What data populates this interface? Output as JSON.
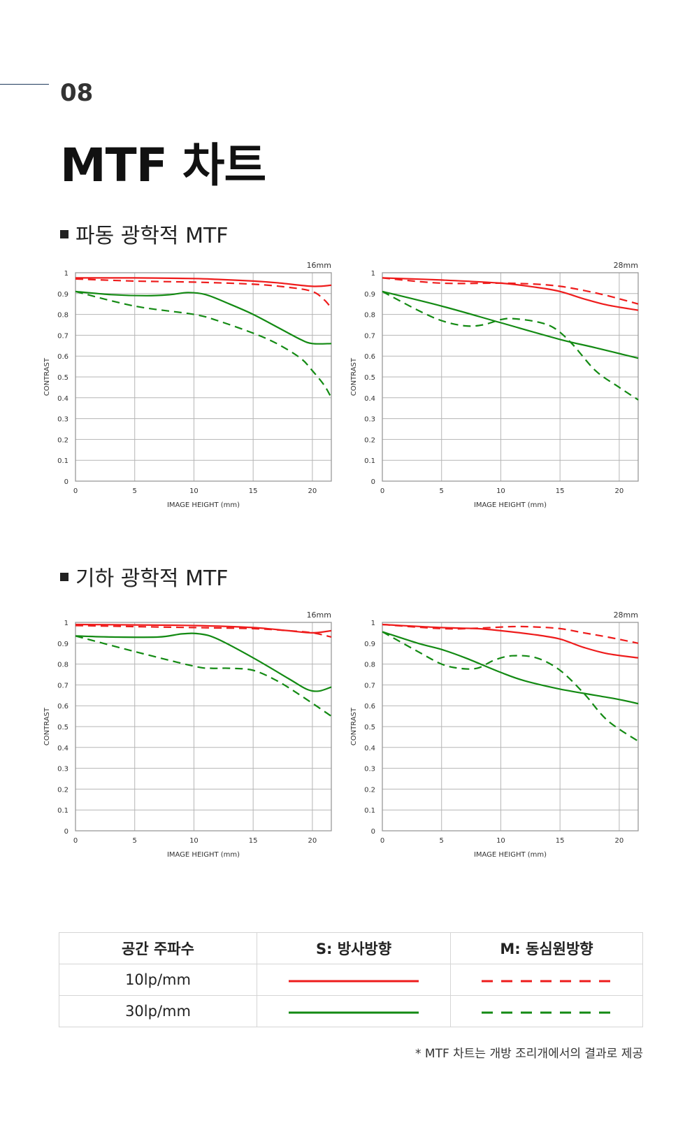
{
  "section": {
    "number": "08",
    "title": "MTF 차트"
  },
  "headings": [
    "파동 광학적 MTF",
    "기하 광학적 MTF"
  ],
  "charts_common": {
    "ylabel": "CONTRAST",
    "xlabel": "IMAGE HEIGHT (mm)",
    "yticks": [
      "0",
      "0.1",
      "0.2",
      "0.3",
      "0.4",
      "0.5",
      "0.6",
      "0.7",
      "0.8",
      "0.9",
      "1"
    ],
    "xticks": [
      "0",
      "5",
      "10",
      "15",
      "20"
    ]
  },
  "colors": {
    "red": "#ee1c1c",
    "green": "#138a13",
    "grid": "#b5b5b5"
  },
  "chart_data": [
    {
      "type": "line",
      "group": "파동 광학적 MTF",
      "title": "16mm",
      "xlabel": "IMAGE HEIGHT (mm)",
      "ylabel": "CONTRAST",
      "xlim": [
        0,
        21.6
      ],
      "ylim": [
        0,
        1
      ],
      "series": [
        {
          "color": "#ee1c1c",
          "dash": false,
          "x": [
            0,
            5,
            10,
            12,
            15,
            17,
            20,
            21.6
          ],
          "y": [
            0.975,
            0.975,
            0.972,
            0.968,
            0.96,
            0.952,
            0.935,
            0.94
          ]
        },
        {
          "color": "#ee1c1c",
          "dash": true,
          "x": [
            0,
            5,
            10,
            15,
            18,
            20,
            21,
            21.6
          ],
          "y": [
            0.97,
            0.96,
            0.955,
            0.945,
            0.93,
            0.91,
            0.87,
            0.83
          ]
        },
        {
          "color": "#138a13",
          "dash": true,
          "x": [
            0,
            5,
            10,
            12,
            15,
            17,
            19,
            20,
            21,
            21.6
          ],
          "y": [
            0.91,
            0.84,
            0.8,
            0.77,
            0.71,
            0.66,
            0.59,
            0.53,
            0.46,
            0.4
          ]
        },
        {
          "color": "#138a13",
          "dash": false,
          "x": [
            0,
            3,
            6,
            8,
            9.5,
            11,
            13,
            15,
            17,
            19,
            20,
            21.6
          ],
          "y": [
            0.91,
            0.895,
            0.89,
            0.895,
            0.905,
            0.895,
            0.85,
            0.8,
            0.74,
            0.68,
            0.66,
            0.66
          ]
        }
      ]
    },
    {
      "type": "line",
      "group": "파동 광학적 MTF",
      "title": "28mm",
      "xlabel": "IMAGE HEIGHT (mm)",
      "ylabel": "CONTRAST",
      "xlim": [
        0,
        21.6
      ],
      "ylim": [
        0,
        1
      ],
      "series": [
        {
          "color": "#ee1c1c",
          "dash": false,
          "x": [
            0,
            5,
            10,
            13,
            15,
            17,
            19,
            21.6
          ],
          "y": [
            0.975,
            0.965,
            0.95,
            0.93,
            0.91,
            0.875,
            0.845,
            0.82
          ]
        },
        {
          "color": "#ee1c1c",
          "dash": true,
          "x": [
            0,
            5,
            10,
            13,
            15,
            17,
            19,
            21.6
          ],
          "y": [
            0.975,
            0.95,
            0.95,
            0.945,
            0.935,
            0.915,
            0.89,
            0.85
          ]
        },
        {
          "color": "#138a13",
          "dash": false,
          "x": [
            0,
            5,
            10,
            15,
            18,
            21.6
          ],
          "y": [
            0.91,
            0.84,
            0.76,
            0.68,
            0.64,
            0.59
          ]
        },
        {
          "color": "#138a13",
          "dash": true,
          "x": [
            0,
            3,
            5,
            7,
            8.5,
            10,
            11,
            13,
            14.5,
            16,
            18,
            20,
            21.6
          ],
          "y": [
            0.91,
            0.82,
            0.77,
            0.745,
            0.75,
            0.775,
            0.78,
            0.765,
            0.735,
            0.66,
            0.53,
            0.45,
            0.39
          ]
        }
      ]
    },
    {
      "type": "line",
      "group": "기하 광학적 MTF",
      "title": "16mm",
      "xlabel": "IMAGE HEIGHT (mm)",
      "ylabel": "CONTRAST",
      "xlim": [
        0,
        21.6
      ],
      "ylim": [
        0,
        1
      ],
      "series": [
        {
          "color": "#ee1c1c",
          "dash": false,
          "x": [
            0,
            5,
            10,
            15,
            18,
            20,
            21.6
          ],
          "y": [
            0.99,
            0.988,
            0.985,
            0.975,
            0.96,
            0.95,
            0.96
          ]
        },
        {
          "color": "#ee1c1c",
          "dash": true,
          "x": [
            0,
            5,
            10,
            15,
            18,
            20,
            21.6
          ],
          "y": [
            0.985,
            0.98,
            0.975,
            0.97,
            0.96,
            0.95,
            0.93
          ]
        },
        {
          "color": "#138a13",
          "dash": false,
          "x": [
            0,
            3,
            7,
            9,
            10.5,
            12,
            15,
            18,
            19.5,
            20.5,
            21.6
          ],
          "y": [
            0.935,
            0.93,
            0.93,
            0.945,
            0.945,
            0.92,
            0.83,
            0.73,
            0.68,
            0.67,
            0.69
          ]
        },
        {
          "color": "#138a13",
          "dash": true,
          "x": [
            0,
            5,
            10,
            11.5,
            13,
            15,
            17,
            19,
            21.6
          ],
          "y": [
            0.935,
            0.86,
            0.79,
            0.78,
            0.78,
            0.77,
            0.72,
            0.65,
            0.55
          ]
        }
      ]
    },
    {
      "type": "line",
      "group": "기하 광학적 MTF",
      "title": "28mm",
      "xlabel": "IMAGE HEIGHT (mm)",
      "ylabel": "CONTRAST",
      "xlim": [
        0,
        21.6
      ],
      "ylim": [
        0,
        1
      ],
      "series": [
        {
          "color": "#ee1c1c",
          "dash": false,
          "x": [
            0,
            5,
            8,
            10,
            13,
            15,
            17,
            19,
            21.6
          ],
          "y": [
            0.99,
            0.975,
            0.97,
            0.96,
            0.94,
            0.92,
            0.88,
            0.85,
            0.83
          ]
        },
        {
          "color": "#ee1c1c",
          "dash": true,
          "x": [
            0,
            5,
            8,
            11,
            13,
            15,
            17,
            19,
            21.6
          ],
          "y": [
            0.99,
            0.97,
            0.972,
            0.98,
            0.978,
            0.97,
            0.95,
            0.93,
            0.9
          ]
        },
        {
          "color": "#138a13",
          "dash": false,
          "x": [
            0,
            3,
            5,
            7,
            10,
            12,
            15,
            18,
            20,
            21.6
          ],
          "y": [
            0.955,
            0.9,
            0.87,
            0.83,
            0.76,
            0.72,
            0.68,
            0.65,
            0.63,
            0.61
          ]
        },
        {
          "color": "#138a13",
          "dash": true,
          "x": [
            0,
            3,
            5,
            6.5,
            8,
            9.5,
            11,
            13,
            15,
            17,
            19,
            21.6
          ],
          "y": [
            0.955,
            0.86,
            0.8,
            0.78,
            0.78,
            0.82,
            0.84,
            0.83,
            0.77,
            0.66,
            0.53,
            0.43
          ]
        }
      ]
    }
  ],
  "legend": {
    "headers": [
      "공간 주파수",
      "S: 방사방향",
      "M: 동심원방향"
    ],
    "rows": [
      {
        "freq": "10lp/mm",
        "color": "#ee1c1c"
      },
      {
        "freq": "30lp/mm",
        "color": "#138a13"
      }
    ]
  },
  "footnote": "* MTF 차트는 개방 조리개에서의 결과로 제공"
}
